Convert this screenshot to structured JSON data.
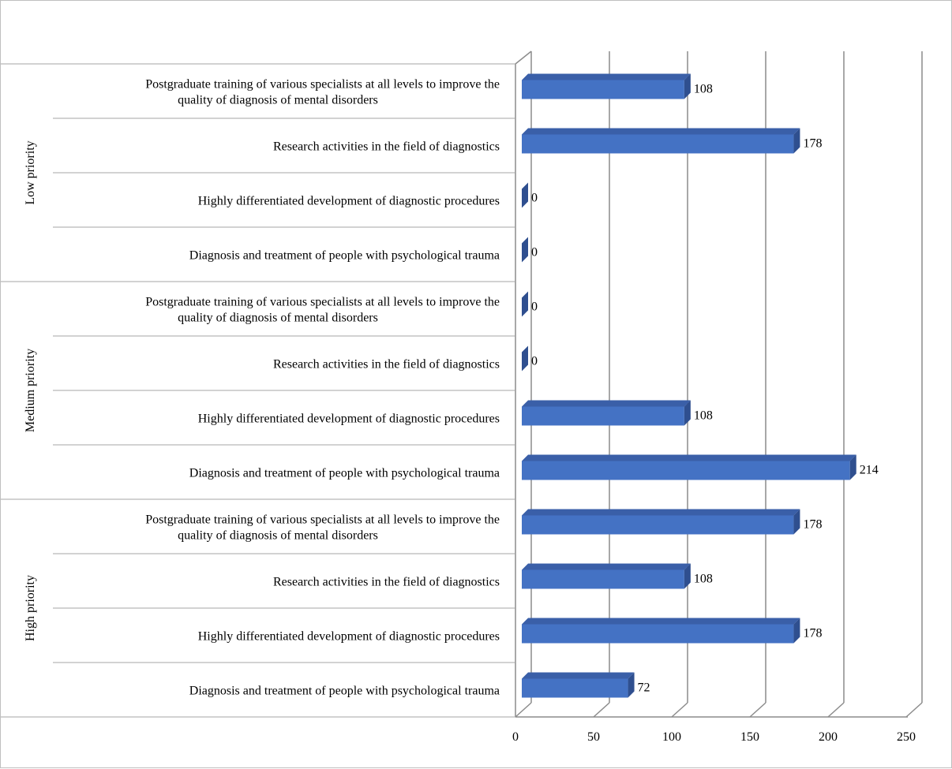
{
  "chart_data": {
    "type": "bar",
    "orientation": "horizontal",
    "three_d": true,
    "title": "",
    "xlabel": "",
    "ylabel": "",
    "xlim": [
      0,
      250
    ],
    "x_ticks": [
      "0",
      "50",
      "100",
      "150",
      "200",
      "250"
    ],
    "grid": true,
    "legend": "none",
    "bar_color": "#4472C4",
    "bar_side_color": "#2F4F8F",
    "bar_top_color": "#3A5FA8",
    "groups": [
      {
        "name": "Low priority",
        "items": [
          {
            "label_lines": [
              "Postgraduate training of various specialists at all levels to improve the",
              "quality of diagnosis of mental disorders"
            ],
            "value": 108,
            "value_label": "108"
          },
          {
            "label_lines": [
              "Research activities in the field of diagnostics"
            ],
            "value": 178,
            "value_label": "178"
          },
          {
            "label_lines": [
              "Highly differentiated development of diagnostic procedures"
            ],
            "value": 0,
            "value_label": "0"
          },
          {
            "label_lines": [
              "Diagnosis and treatment of people with psychological trauma"
            ],
            "value": 0,
            "value_label": "0"
          }
        ]
      },
      {
        "name": "Medium priority",
        "items": [
          {
            "label_lines": [
              "Postgraduate training of various specialists at all levels to improve the",
              "quality of diagnosis of mental disorders"
            ],
            "value": 0,
            "value_label": "0"
          },
          {
            "label_lines": [
              "Research activities in the field of diagnostics"
            ],
            "value": 0,
            "value_label": "0"
          },
          {
            "label_lines": [
              "Highly differentiated development of diagnostic procedures"
            ],
            "value": 108,
            "value_label": "108"
          },
          {
            "label_lines": [
              "Diagnosis and treatment of people with psychological trauma"
            ],
            "value": 214,
            "value_label": "214"
          }
        ]
      },
      {
        "name": "High priority",
        "items": [
          {
            "label_lines": [
              "Postgraduate training of various specialists at all levels to improve the",
              "quality of diagnosis of mental disorders"
            ],
            "value": 178,
            "value_label": "178"
          },
          {
            "label_lines": [
              "Research activities in the field of diagnostics"
            ],
            "value": 108,
            "value_label": "108"
          },
          {
            "label_lines": [
              "Highly differentiated development of diagnostic procedures"
            ],
            "value": 178,
            "value_label": "178"
          },
          {
            "label_lines": [
              "Diagnosis and treatment of people with psychological trauma"
            ],
            "value": 72,
            "value_label": "72"
          }
        ]
      }
    ]
  }
}
